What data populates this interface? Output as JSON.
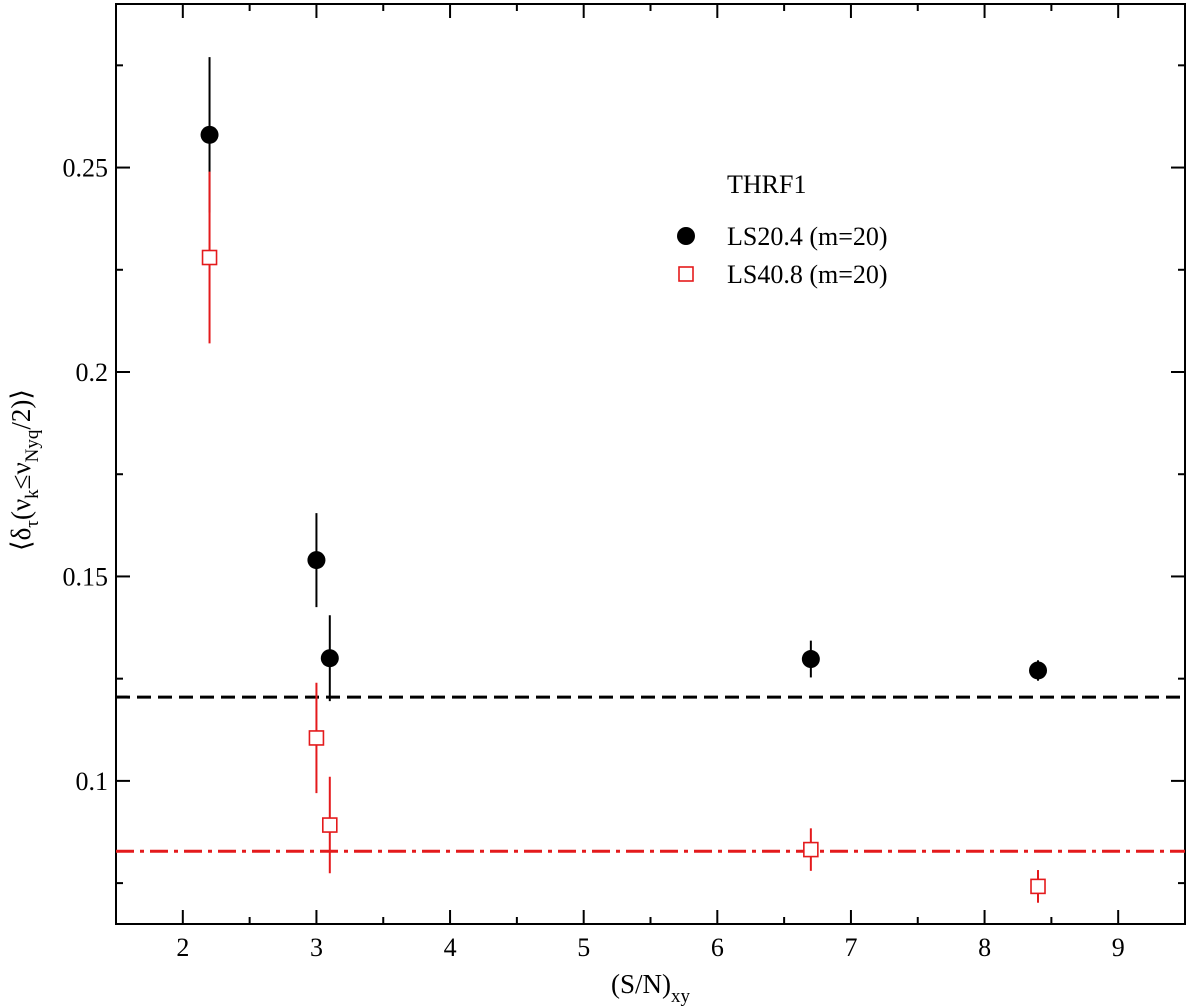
{
  "chart_data": {
    "type": "scatter",
    "xlabel_main": "(S/N)",
    "xlabel_sub": "xy",
    "ylabel": "⟨δτ(νk≤νNyq/2)⟩",
    "xlim": [
      1.5,
      9.5
    ],
    "ylim": [
      0.065,
      0.29
    ],
    "x_ticks": [
      2,
      3,
      4,
      5,
      6,
      7,
      8,
      9
    ],
    "x_tick_labels": [
      "2",
      "3",
      "4",
      "5",
      "6",
      "7",
      "8",
      "9"
    ],
    "y_ticks": [
      0.1,
      0.15,
      0.2,
      0.25
    ],
    "y_tick_labels": [
      "0.1",
      "0.15",
      "0.2",
      "0.25"
    ],
    "legend_title": "THRF1",
    "legend_position": "top-right",
    "grid": false,
    "series": [
      {
        "name": "LS20.4 (m=20)",
        "marker": "filled-circle",
        "color": "#000000",
        "points": [
          {
            "x": 2.2,
            "y": 0.258,
            "err": 0.019
          },
          {
            "x": 3.0,
            "y": 0.154,
            "err": 0.0115
          },
          {
            "x": 3.1,
            "y": 0.13,
            "err": 0.0105
          },
          {
            "x": 6.7,
            "y": 0.1298,
            "err": 0.0045
          },
          {
            "x": 8.4,
            "y": 0.127,
            "err": 0.0025
          }
        ]
      },
      {
        "name": "LS40.8 (m=20)",
        "marker": "open-square",
        "color": "#e41a1c",
        "points": [
          {
            "x": 2.2,
            "y": 0.228,
            "err": 0.021
          },
          {
            "x": 3.0,
            "y": 0.1105,
            "err": 0.0135
          },
          {
            "x": 3.1,
            "y": 0.0892,
            "err": 0.0118
          },
          {
            "x": 6.7,
            "y": 0.0832,
            "err": 0.0052
          },
          {
            "x": 8.4,
            "y": 0.0742,
            "err": 0.004
          }
        ]
      }
    ],
    "reference_lines": [
      {
        "y": 0.1205,
        "style": "dashed",
        "color": "#000000"
      },
      {
        "y": 0.0828,
        "style": "dash-dot",
        "color": "#e41a1c"
      }
    ]
  }
}
